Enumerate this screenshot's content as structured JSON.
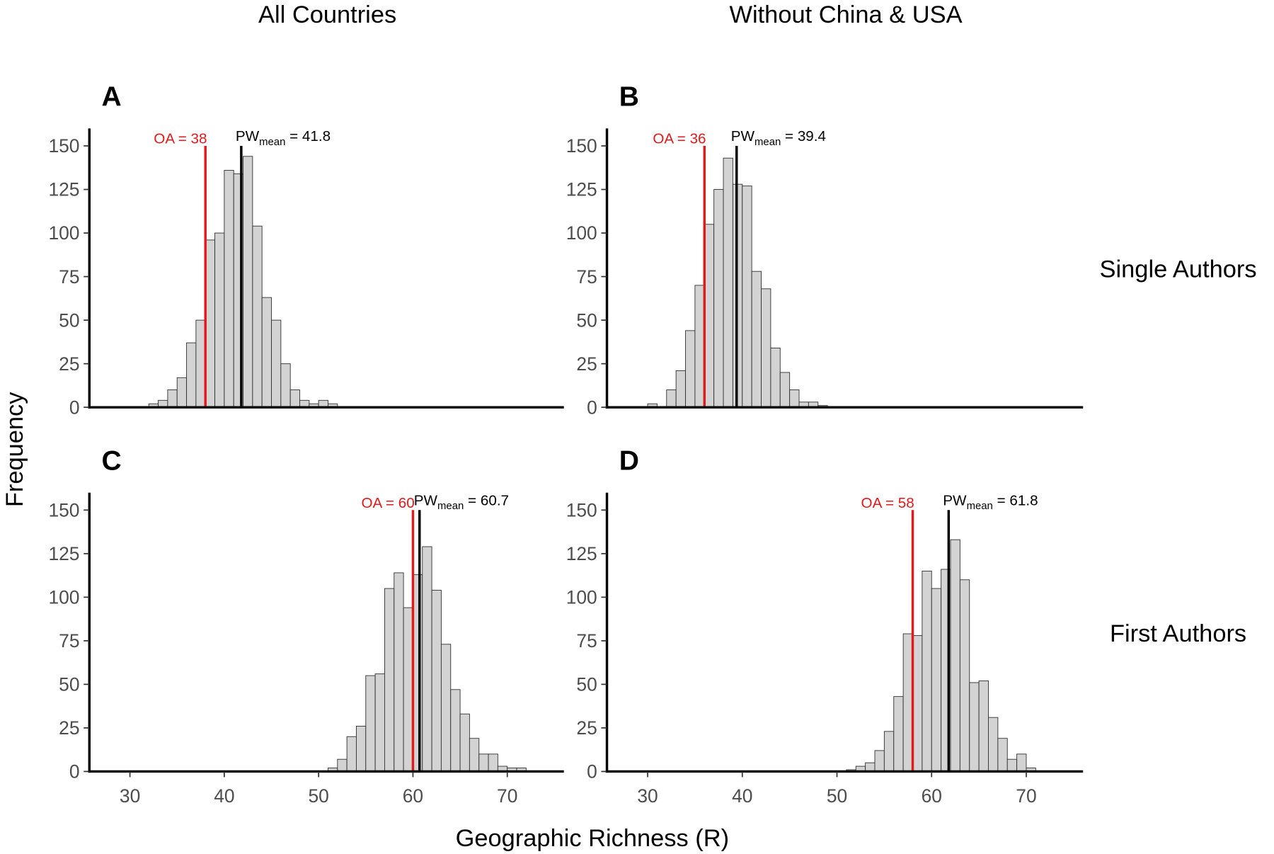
{
  "column_titles": [
    "All Countries",
    "Without China & USA"
  ],
  "row_labels": [
    "Single Authors",
    "First Authors"
  ],
  "xlabel": "Geographic Richness (R)",
  "ylabel": "Frequency",
  "chart_data": [
    {
      "type": "histogram",
      "label": "A",
      "color": "#d3d3d3",
      "bins": [
        32,
        33,
        34,
        35,
        36,
        37,
        38,
        39,
        40,
        41,
        42,
        43,
        44,
        45,
        46,
        47,
        48,
        49,
        50,
        51,
        52
      ],
      "values": [
        2,
        4,
        10,
        17,
        37,
        50,
        96,
        100,
        136,
        134,
        144,
        104,
        63,
        50,
        25,
        10,
        4,
        2,
        4,
        2
      ],
      "xlim": [
        25.7,
        76
      ],
      "ylim": [
        0,
        160
      ],
      "yticks": [
        0,
        25,
        50,
        75,
        100,
        125,
        150
      ],
      "lines": [
        {
          "value": 38,
          "color": "#e31a1c",
          "label": "OA = 38"
        },
        {
          "value": 41.8,
          "color": "#000000",
          "label": "PW",
          "label_sub": "mean",
          "label_tail": " = 41.8"
        }
      ]
    },
    {
      "type": "histogram",
      "label": "B",
      "color": "#d3d3d3",
      "bins": [
        30,
        31,
        32,
        33,
        34,
        35,
        36,
        37,
        38,
        39,
        40,
        41,
        42,
        43,
        44,
        45,
        46,
        47,
        48,
        49
      ],
      "values": [
        2,
        0,
        10,
        21,
        44,
        70,
        105,
        125,
        143,
        128,
        127,
        78,
        68,
        34,
        20,
        10,
        3,
        3,
        1
      ],
      "xlim": [
        25.7,
        76
      ],
      "ylim": [
        0,
        160
      ],
      "yticks": [
        0,
        25,
        50,
        75,
        100,
        125,
        150
      ],
      "lines": [
        {
          "value": 36,
          "color": "#e31a1c",
          "label": "OA = 36"
        },
        {
          "value": 39.4,
          "color": "#000000",
          "label": "PW",
          "label_sub": "mean",
          "label_tail": " = 39.4"
        }
      ]
    },
    {
      "type": "histogram",
      "label": "C",
      "color": "#d3d3d3",
      "bins": [
        51,
        52,
        53,
        54,
        55,
        56,
        57,
        58,
        59,
        60,
        61,
        62,
        63,
        64,
        65,
        66,
        67,
        68,
        69,
        70,
        71,
        72
      ],
      "values": [
        2,
        7,
        20,
        26,
        55,
        56,
        105,
        114,
        94,
        113,
        129,
        104,
        73,
        47,
        33,
        19,
        10,
        10,
        3,
        2,
        2
      ],
      "xlim": [
        25.7,
        76
      ],
      "ylim": [
        0,
        160
      ],
      "yticks": [
        0,
        25,
        50,
        75,
        100,
        125,
        150
      ],
      "xticks": [
        30,
        40,
        50,
        60,
        70
      ],
      "lines": [
        {
          "value": 60,
          "color": "#e31a1c",
          "label": "OA = 60"
        },
        {
          "value": 60.7,
          "color": "#000000",
          "label": "PW",
          "label_sub": "mean",
          "label_tail": " = 60.7"
        }
      ]
    },
    {
      "type": "histogram",
      "label": "D",
      "color": "#d3d3d3",
      "bins": [
        51,
        52,
        53,
        54,
        55,
        56,
        57,
        58,
        59,
        60,
        61,
        62,
        63,
        64,
        65,
        66,
        67,
        68,
        69,
        70,
        71
      ],
      "values": [
        1,
        3,
        5,
        12,
        23,
        43,
        79,
        78,
        115,
        105,
        116,
        133,
        110,
        51,
        52,
        31,
        19,
        7,
        10,
        2
      ],
      "xlim": [
        25.7,
        76
      ],
      "ylim": [
        0,
        160
      ],
      "yticks": [
        0,
        25,
        50,
        75,
        100,
        125,
        150
      ],
      "xticks": [
        30,
        40,
        50,
        60,
        70
      ],
      "lines": [
        {
          "value": 58,
          "color": "#e31a1c",
          "label": "OA = 58"
        },
        {
          "value": 61.8,
          "color": "#000000",
          "label": "PW",
          "label_sub": "mean",
          "label_tail": " = 61.8"
        }
      ]
    }
  ]
}
